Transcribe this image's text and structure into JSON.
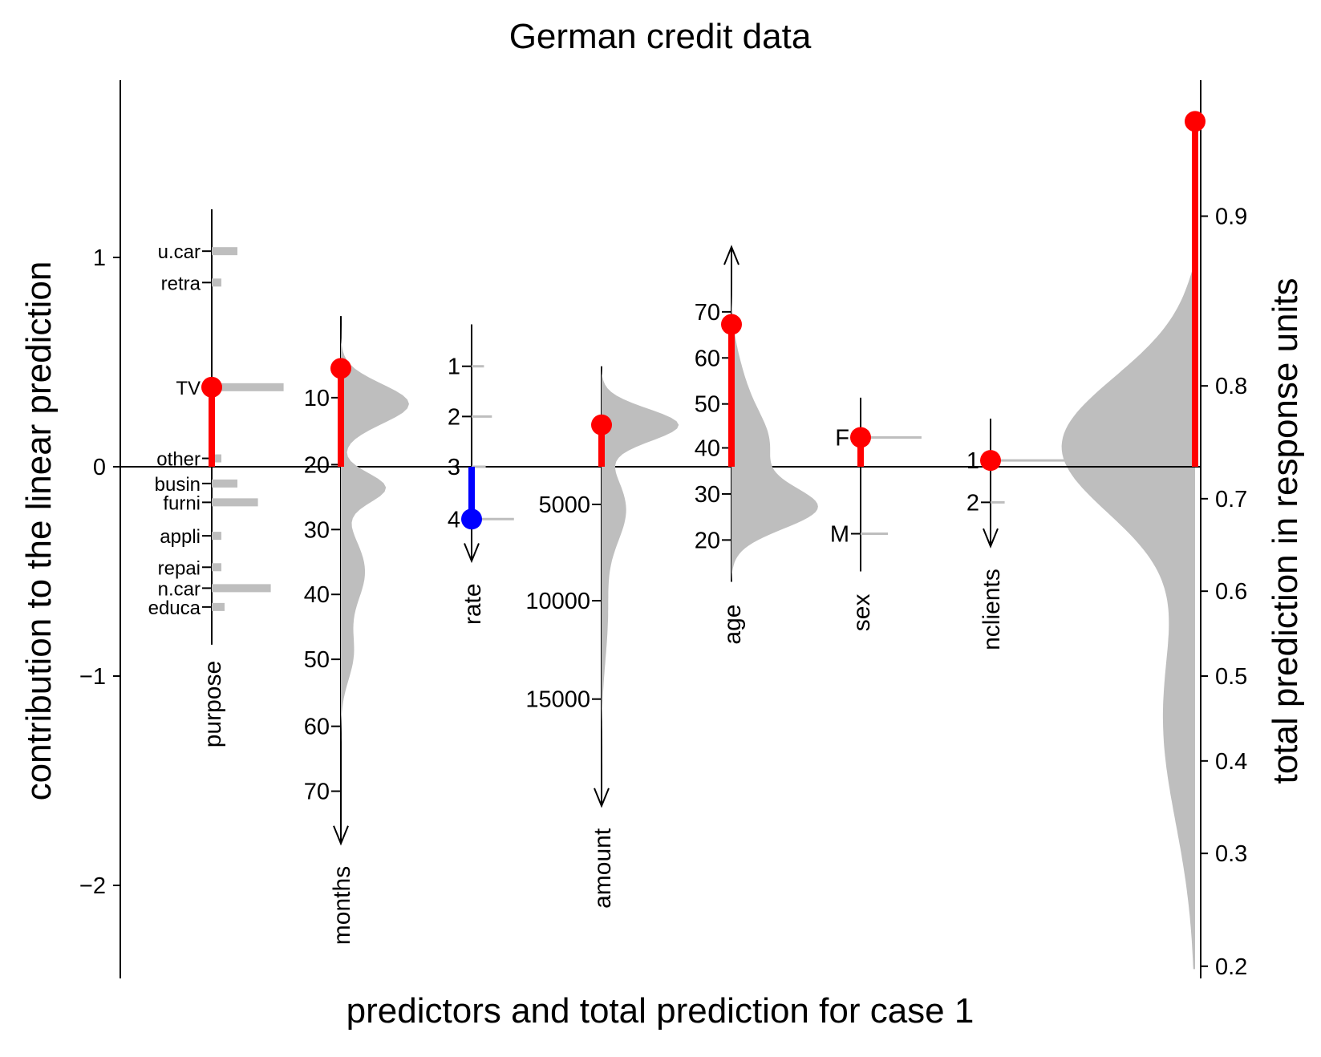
{
  "chart_data": {
    "type": "nomogram",
    "title": "German credit data",
    "xlabel": "predictors and total prediction for case 1",
    "ylabel": "contribution to the linear prediction",
    "ylabel_right": "total prediction in response units",
    "ylim": [
      -2.4,
      1.85
    ],
    "left_ticks": [
      {
        "v": 1,
        "label": "1"
      },
      {
        "v": 0,
        "label": "0"
      },
      {
        "v": -1,
        "label": "−1"
      },
      {
        "v": -2,
        "label": "−2"
      }
    ],
    "right_ticks": [
      {
        "v": 0.9,
        "label": "0.9"
      },
      {
        "v": 0.8,
        "label": "0.8"
      },
      {
        "v": 0.7,
        "label": "0.7"
      },
      {
        "v": 0.6,
        "label": "0.6"
      },
      {
        "v": 0.5,
        "label": "0.5"
      },
      {
        "v": 0.4,
        "label": "0.4"
      },
      {
        "v": 0.3,
        "label": "0.3"
      },
      {
        "v": 0.2,
        "label": "0.2"
      }
    ],
    "colors": {
      "positive": "#ff0000",
      "negative": "#0000ff",
      "density": "#bebebe"
    },
    "predictors": [
      {
        "name": "purpose",
        "kind": "categorical",
        "levels": [
          {
            "label": "u.car",
            "contrib": 1.03,
            "freq": 0.1
          },
          {
            "label": "retra",
            "contrib": 0.88,
            "freq": 0.01
          },
          {
            "label": "TV",
            "contrib": 0.38,
            "freq": 0.28
          },
          {
            "label": "other",
            "contrib": 0.04,
            "freq": 0.01
          },
          {
            "label": "busin",
            "contrib": -0.08,
            "freq": 0.1
          },
          {
            "label": "furni",
            "contrib": -0.17,
            "freq": 0.18
          },
          {
            "label": "appli",
            "contrib": -0.33,
            "freq": 0.01
          },
          {
            "label": "repai",
            "contrib": -0.48,
            "freq": 0.02
          },
          {
            "label": "n.car",
            "contrib": -0.58,
            "freq": 0.23
          },
          {
            "label": "educa",
            "contrib": -0.67,
            "freq": 0.05
          }
        ],
        "case_contrib": 0.38
      },
      {
        "name": "months",
        "kind": "continuous",
        "ticks": [
          {
            "label": "10",
            "contrib": 0.33
          },
          {
            "label": "20",
            "contrib": 0.01
          },
          {
            "label": "30",
            "contrib": -0.3
          },
          {
            "label": "40",
            "contrib": -0.61
          },
          {
            "label": "50",
            "contrib": -0.92
          },
          {
            "label": "60",
            "contrib": -1.24
          },
          {
            "label": "70",
            "contrib": -1.55
          }
        ],
        "range": [
          0.72,
          -1.8
        ],
        "case_contrib": 0.47
      },
      {
        "name": "rate",
        "kind": "ordinal",
        "levels": [
          {
            "label": "1",
            "contrib": 0.48,
            "freq": 0.14
          },
          {
            "label": "2",
            "contrib": 0.24,
            "freq": 0.23
          },
          {
            "label": "3",
            "contrib": 0.0,
            "freq": 0.16
          },
          {
            "label": "4",
            "contrib": -0.25,
            "freq": 0.48
          }
        ],
        "range": [
          0.68,
          -0.45
        ],
        "case_contrib": -0.25
      },
      {
        "name": "amount",
        "kind": "continuous",
        "ticks": [
          {
            "label": "5000",
            "contrib": -0.18
          },
          {
            "label": "10000",
            "contrib": -0.64
          },
          {
            "label": "15000",
            "contrib": -1.11
          }
        ],
        "range": [
          0.48,
          -1.62
        ],
        "case_contrib": 0.2
      },
      {
        "name": "age",
        "kind": "continuous",
        "ticks": [
          {
            "label": "70",
            "contrib": 0.74
          },
          {
            "label": "60",
            "contrib": 0.52
          },
          {
            "label": "50",
            "contrib": 0.3
          },
          {
            "label": "40",
            "contrib": 0.09
          },
          {
            "label": "30",
            "contrib": -0.13
          },
          {
            "label": "20",
            "contrib": -0.35
          }
        ],
        "range": [
          -0.55,
          1.05
        ],
        "case_contrib": 0.68
      },
      {
        "name": "sex",
        "kind": "categorical",
        "levels": [
          {
            "label": "F",
            "contrib": 0.14,
            "freq": 0.69
          },
          {
            "label": "M",
            "contrib": -0.32,
            "freq": 0.31
          }
        ],
        "range": [
          0.33,
          -0.5
        ],
        "case_contrib": 0.14
      },
      {
        "name": "nclients",
        "kind": "ordinal",
        "levels": [
          {
            "label": "1",
            "contrib": 0.03,
            "freq": 0.84
          },
          {
            "label": "2",
            "contrib": -0.17,
            "freq": 0.16
          }
        ],
        "range": [
          0.23,
          -0.38
        ],
        "case_contrib": 0.03
      }
    ],
    "total": {
      "case_linear": 1.65,
      "case_response": 0.964
    }
  }
}
